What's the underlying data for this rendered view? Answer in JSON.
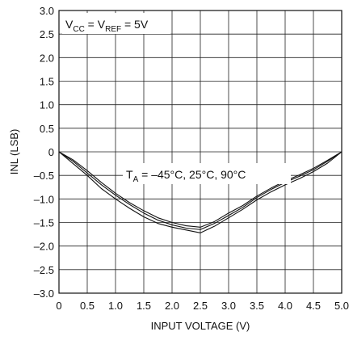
{
  "chart_data": {
    "type": "line",
    "title": "",
    "xlabel": "INPUT VOLTAGE (V)",
    "ylabel": "INL (LSB)",
    "xlim": [
      0,
      5
    ],
    "ylim": [
      -3,
      3
    ],
    "x_ticks": [
      "0",
      "0.5",
      "1.0",
      "1.5",
      "2.0",
      "2.5",
      "3.0",
      "3.5",
      "4.0",
      "4.5",
      "5.0"
    ],
    "y_ticks": [
      "3.0",
      "2.5",
      "2.0",
      "1.5",
      "1.0",
      "0.5",
      "0",
      "–0.5",
      "–1.0",
      "–1.5",
      "–2.0",
      "–2.5",
      "–3.0"
    ],
    "grid": true,
    "legend": "none",
    "annotations": {
      "supply": {
        "base1": "V",
        "sub1": "CC",
        "mid": " = V",
        "sub2": "REF",
        "tail": " = 5V"
      },
      "temp": {
        "base": "T",
        "sub": "A",
        "tail": " = –45°C, 25°C, 90°C"
      }
    },
    "series": [
      {
        "x": [
          0,
          0.25,
          0.5,
          0.75,
          1.0,
          1.25,
          1.5,
          1.75,
          2.0,
          2.25,
          2.5,
          2.75,
          3.0,
          3.25,
          3.5,
          3.75,
          4.0,
          4.25,
          4.5,
          4.75,
          5.0
        ],
        "y": [
          0,
          -0.2,
          -0.45,
          -0.7,
          -0.92,
          -1.12,
          -1.3,
          -1.45,
          -1.55,
          -1.62,
          -1.65,
          -1.52,
          -1.35,
          -1.18,
          -0.97,
          -0.8,
          -0.65,
          -0.52,
          -0.38,
          -0.2,
          0
        ]
      },
      {
        "x": [
          0,
          0.25,
          0.5,
          0.75,
          1.0,
          1.25,
          1.5,
          1.75,
          2.0,
          2.25,
          2.5,
          2.75,
          3.0,
          3.25,
          3.5,
          3.75,
          4.0,
          4.25,
          4.5,
          4.75,
          5.0
        ],
        "y": [
          0,
          -0.25,
          -0.5,
          -0.78,
          -1.0,
          -1.2,
          -1.38,
          -1.52,
          -1.6,
          -1.66,
          -1.72,
          -1.58,
          -1.4,
          -1.22,
          -1.02,
          -0.85,
          -0.7,
          -0.57,
          -0.42,
          -0.24,
          0
        ]
      },
      {
        "x": [
          0,
          0.25,
          0.5,
          0.75,
          1.0,
          1.25,
          1.5,
          1.75,
          2.0,
          2.25,
          2.5,
          2.75,
          3.0,
          3.25,
          3.5,
          3.75,
          4.0,
          4.25,
          4.5,
          4.75,
          5.0
        ],
        "y": [
          0,
          -0.17,
          -0.4,
          -0.65,
          -0.88,
          -1.08,
          -1.25,
          -1.4,
          -1.5,
          -1.57,
          -1.6,
          -1.48,
          -1.3,
          -1.14,
          -0.94,
          -0.77,
          -0.62,
          -0.49,
          -0.35,
          -0.18,
          0
        ]
      }
    ]
  }
}
